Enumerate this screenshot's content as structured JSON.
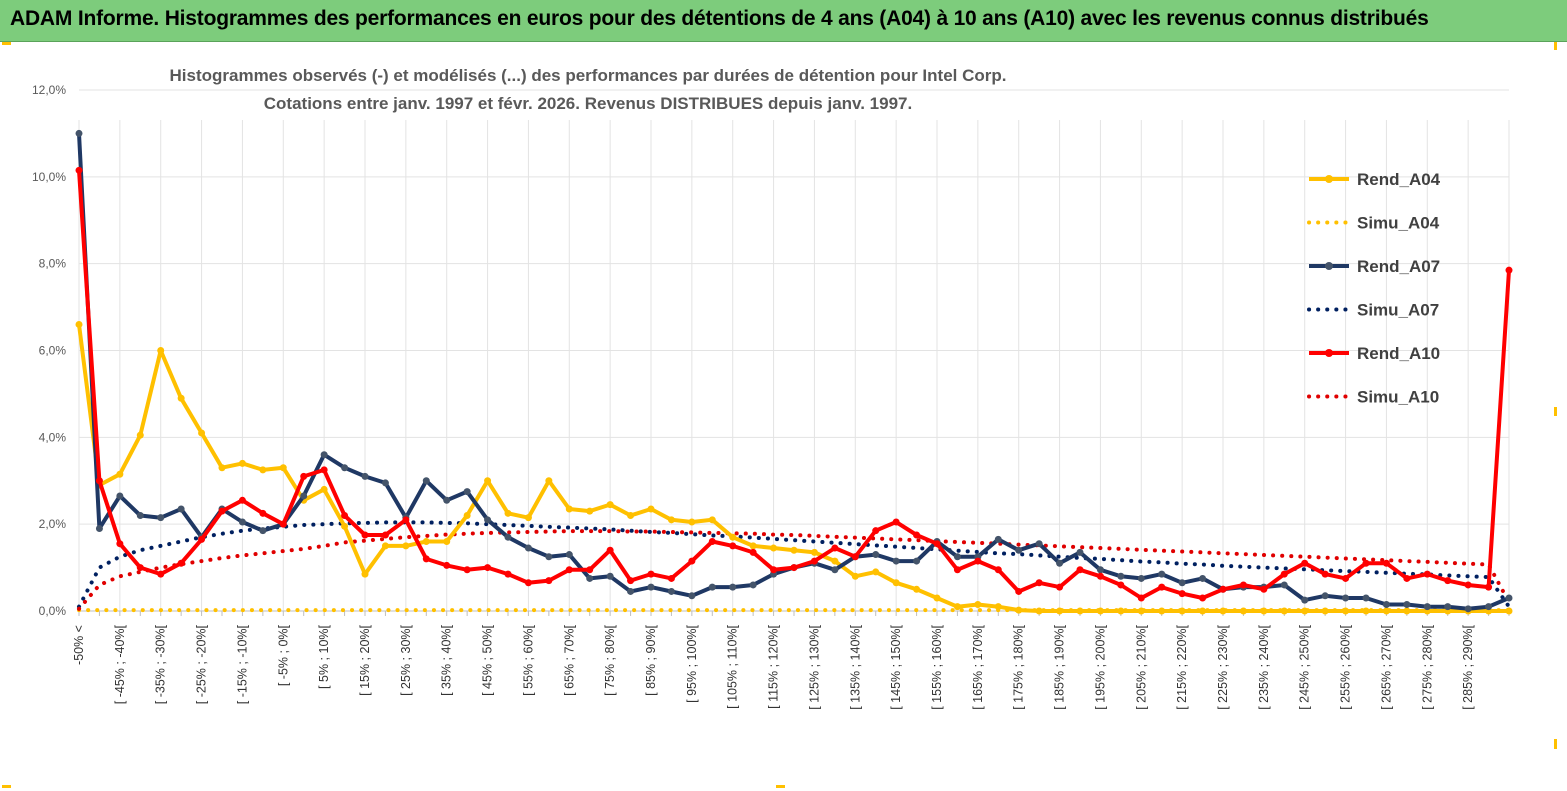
{
  "header": {
    "title": "ADAM Informe. Histogrammes des performances en euros pour des détentions de 4 ans (A04) à 10 ans (A10) avec les revenus connus distribués"
  },
  "chart_data": {
    "type": "line",
    "title_line1": "Histogrammes observés (-) et modélisés (...) des performances par durées de détention pour Intel Corp.",
    "title_line2": "Cotations entre janv. 1997 et févr. 2026. Revenus DISTRIBUES depuis janv. 1997.",
    "xlabel": "",
    "ylabel": "",
    "ylim": [
      0,
      12
    ],
    "yticks": [
      "0,0%",
      "2,0%",
      "4,0%",
      "6,0%",
      "8,0%",
      "10,0%",
      "12,0%"
    ],
    "grid": true,
    "legend_position": "right",
    "categories": [
      "-50% <",
      "[ -50% ; -45%[",
      "[ -45% ; -40%[",
      "[ -40% ; -35%[",
      "[ -35% ; -30%[",
      "[ -30% ; -25%[",
      "[ -25% ; -20%[",
      "[ -20% ; -15%[",
      "[ -15% ; -10%[",
      "[ -10% ; -5%[",
      "[ -5% ; 0%[",
      "[ 0% ; 5%[",
      "[ 5% ; 10%[",
      "[ 10% ; 15%[",
      "[ 15% ; 20%[",
      "[ 20% ; 25%[",
      "[ 25% ; 30%[",
      "[ 30% ; 35%[",
      "[ 35% ; 40%[",
      "[ 40% ; 45%[",
      "[ 45% ; 50%[",
      "[ 50% ; 55%[",
      "[ 55% ; 60%[",
      "[ 60% ; 65%[",
      "[ 65% ; 70%[",
      "[ 70% ; 75%[",
      "[ 75% ; 80%[",
      "[ 80% ; 85%[",
      "[ 85% ; 90%[",
      "[ 90% ; 95%[",
      "[ 95% ; 100%[",
      "[ 100% ; 105%[",
      "[ 105% ; 110%[",
      "[ 110% ; 115%[",
      "[ 115% ; 120%[",
      "[ 120% ; 125%[",
      "[ 125% ; 130%[",
      "[ 130% ; 135%[",
      "[ 135% ; 140%[",
      "[ 140% ; 145%[",
      "[ 145% ; 150%[",
      "[ 150% ; 155%[",
      "[ 155% ; 160%[",
      "[ 160% ; 165%[",
      "[ 165% ; 170%[",
      "[ 170% ; 175%[",
      "[ 175% ; 180%[",
      "[ 180% ; 185%[",
      "[ 185% ; 190%[",
      "[ 190% ; 195%[",
      "[ 195% ; 200%[",
      "[ 200% ; 205%[",
      "[ 205% ; 210%[",
      "[ 210% ; 215%[",
      "[ 215% ; 220%[",
      "[ 220% ; 225%[",
      "[ 225% ; 230%[",
      "[ 230% ; 235%[",
      "[ 235% ; 240%[",
      "[ 240% ; 245%[",
      "[ 245% ; 250%[",
      "[ 250% ; 255%[",
      "[ 255% ; 260%[",
      "[ 260% ; 265%[",
      "[ 265% ; 270%[",
      "[ 270% ; 275%[",
      "[ 275% ; 280%[",
      "[ 280% ; 285%[",
      "[ 285% ; 290%[",
      "[ 290% ; 295%[",
      "[ 295% ; 300%["
    ],
    "visible_tick_labels": [
      "-50% <",
      "[ -45% ; -40%[",
      "[ -35% ; -30%[",
      "[ -25% ; -20%[",
      "[ -15% ; -10%[",
      "[ -5% ; 0%[",
      "[ 5% ; 10%[",
      "[ 15% ; 20%[",
      "[ 25% ; 30%[",
      "[ 35% ; 40%[",
      "[ 45% ; 50%[",
      "[ 55% ; 60%[",
      "[ 65% ; 70%[",
      "[ 75% ; 80%[",
      "[ 85% ; 90%[",
      "[ 95% ; 100%[",
      "[ 105% ; 110%[",
      "[ 115% ; 120%[",
      "[ 125% ; 130%[",
      "[ 135% ; 140%[",
      "[ 145% ; 150%[",
      "[ 155% ; 160%[",
      "[ 165% ; 170%[",
      "[ 175% ; 180%[",
      "[ 185% ; 190%[",
      "[ 195% ; 200%[",
      "[ 205% ; 210%[",
      "[ 215% ; 220%[",
      "[ 225% ; 230%[",
      "[ 235% ; 240%[",
      "[ 245% ; 250%[",
      "[ 255% ; 260%[",
      "[ 265% ; 270%[",
      "[ 275% ; 280%[",
      "[ 285% ; 290%["
    ],
    "series": [
      {
        "name": "Rend_A04",
        "style": "solid",
        "markers": true,
        "color": "#ffc000",
        "values": [
          6.6,
          2.9,
          3.15,
          4.05,
          6.0,
          4.9,
          4.1,
          3.3,
          3.4,
          3.25,
          3.3,
          2.55,
          2.8,
          1.95,
          0.85,
          1.5,
          1.5,
          1.6,
          1.6,
          2.2,
          3.0,
          2.25,
          2.15,
          3.0,
          2.35,
          2.3,
          2.45,
          2.2,
          2.35,
          2.1,
          2.05,
          2.1,
          1.7,
          1.5,
          1.45,
          1.4,
          1.35,
          1.15,
          0.8,
          0.9,
          0.65,
          0.5,
          0.3,
          0.1,
          0.15,
          0.1,
          0.02,
          0,
          0,
          0,
          0,
          0,
          0,
          0,
          0,
          0,
          0,
          0,
          0,
          0,
          0,
          0,
          0,
          0,
          0,
          0,
          0,
          0,
          0,
          0,
          0
        ]
      },
      {
        "name": "Simu_A04",
        "style": "dotted",
        "markers": false,
        "color": "#ffc000",
        "values": [
          0.02,
          0.02,
          0.02,
          0.02,
          0.02,
          0.02,
          0.02,
          0.02,
          0.02,
          0.02,
          0.02,
          0.02,
          0.02,
          0.02,
          0.02,
          0.02,
          0.02,
          0.02,
          0.02,
          0.02,
          0.02,
          0.02,
          0.02,
          0.02,
          0.02,
          0.02,
          0.02,
          0.02,
          0.02,
          0.02,
          0.02,
          0.02,
          0.02,
          0.02,
          0.02,
          0.02,
          0.02,
          0.02,
          0.02,
          0.02,
          0.02,
          0.02,
          0.02,
          0.02,
          0.02,
          0.02,
          0.02,
          0.02,
          0.02,
          0.02,
          0.02,
          0.02,
          0.02,
          0.02,
          0.02,
          0.02,
          0.02,
          0.02,
          0.02,
          0.02,
          0.02,
          0.02,
          0.02,
          0.02,
          0.02,
          0.02,
          0.02,
          0.02,
          0.02,
          0.02,
          0.02
        ]
      },
      {
        "name": "Rend_A07",
        "style": "solid",
        "markers": true,
        "color": "#1f3864",
        "values": [
          11.0,
          1.9,
          2.65,
          2.2,
          2.15,
          2.35,
          1.7,
          2.35,
          2.05,
          1.85,
          2.0,
          2.65,
          3.6,
          3.3,
          3.1,
          2.95,
          2.15,
          3.0,
          2.55,
          2.75,
          2.1,
          1.7,
          1.45,
          1.25,
          1.3,
          0.75,
          0.8,
          0.45,
          0.55,
          0.45,
          0.35,
          0.55,
          0.55,
          0.6,
          0.85,
          1.0,
          1.1,
          0.95,
          1.25,
          1.3,
          1.15,
          1.15,
          1.6,
          1.25,
          1.25,
          1.65,
          1.4,
          1.55,
          1.1,
          1.35,
          0.95,
          0.8,
          0.75,
          0.85,
          0.65,
          0.75,
          0.5,
          0.55,
          0.55,
          0.6,
          0.25,
          0.35,
          0.3,
          0.3,
          0.15,
          0.15,
          0.1,
          0.1,
          0.05,
          0.1,
          0.3
        ]
      },
      {
        "name": "Simu_A07",
        "style": "dotted",
        "markers": false,
        "color": "#002060",
        "values": [
          0.1,
          1.0,
          1.25,
          1.4,
          1.5,
          1.6,
          1.7,
          1.78,
          1.85,
          1.9,
          1.94,
          1.98,
          2.0,
          2.02,
          2.03,
          2.04,
          2.04,
          2.04,
          2.03,
          2.02,
          2.0,
          1.98,
          1.96,
          1.94,
          1.92,
          1.9,
          1.88,
          1.85,
          1.82,
          1.8,
          1.77,
          1.74,
          1.72,
          1.69,
          1.66,
          1.63,
          1.6,
          1.57,
          1.54,
          1.51,
          1.48,
          1.45,
          1.42,
          1.39,
          1.36,
          1.33,
          1.31,
          1.28,
          1.25,
          1.22,
          1.2,
          1.17,
          1.14,
          1.12,
          1.09,
          1.07,
          1.04,
          1.02,
          1.0,
          0.98,
          0.96,
          0.94,
          0.92,
          0.9,
          0.88,
          0.86,
          0.84,
          0.82,
          0.8,
          0.78,
          0.1
        ]
      },
      {
        "name": "Rend_A10",
        "style": "solid",
        "markers": true,
        "color": "#ff0000",
        "values": [
          10.15,
          3.0,
          1.55,
          1.0,
          0.85,
          1.1,
          1.65,
          2.3,
          2.55,
          2.25,
          2.0,
          3.1,
          3.25,
          2.2,
          1.75,
          1.75,
          2.1,
          1.2,
          1.05,
          0.95,
          1.0,
          0.85,
          0.65,
          0.7,
          0.95,
          0.95,
          1.4,
          0.7,
          0.85,
          0.75,
          1.15,
          1.6,
          1.5,
          1.35,
          0.95,
          1.0,
          1.15,
          1.45,
          1.25,
          1.85,
          2.05,
          1.75,
          1.55,
          0.95,
          1.15,
          0.95,
          0.45,
          0.65,
          0.55,
          0.95,
          0.8,
          0.6,
          0.3,
          0.55,
          0.4,
          0.3,
          0.5,
          0.6,
          0.5,
          0.85,
          1.1,
          0.85,
          0.75,
          1.1,
          1.1,
          0.75,
          0.85,
          0.7,
          0.6,
          0.55,
          7.85
        ]
      },
      {
        "name": "Simu_A10",
        "style": "dotted",
        "markers": false,
        "color": "#e00000",
        "values": [
          0.05,
          0.6,
          0.8,
          0.9,
          1.0,
          1.08,
          1.15,
          1.22,
          1.28,
          1.33,
          1.38,
          1.43,
          1.5,
          1.58,
          1.62,
          1.66,
          1.7,
          1.73,
          1.76,
          1.78,
          1.8,
          1.81,
          1.82,
          1.83,
          1.84,
          1.84,
          1.84,
          1.83,
          1.83,
          1.82,
          1.81,
          1.8,
          1.79,
          1.78,
          1.76,
          1.75,
          1.73,
          1.71,
          1.69,
          1.67,
          1.65,
          1.63,
          1.61,
          1.59,
          1.57,
          1.55,
          1.53,
          1.51,
          1.49,
          1.47,
          1.45,
          1.43,
          1.41,
          1.39,
          1.37,
          1.35,
          1.33,
          1.31,
          1.29,
          1.27,
          1.25,
          1.23,
          1.21,
          1.19,
          1.17,
          1.15,
          1.13,
          1.11,
          1.09,
          1.07,
          0.2
        ]
      }
    ]
  }
}
